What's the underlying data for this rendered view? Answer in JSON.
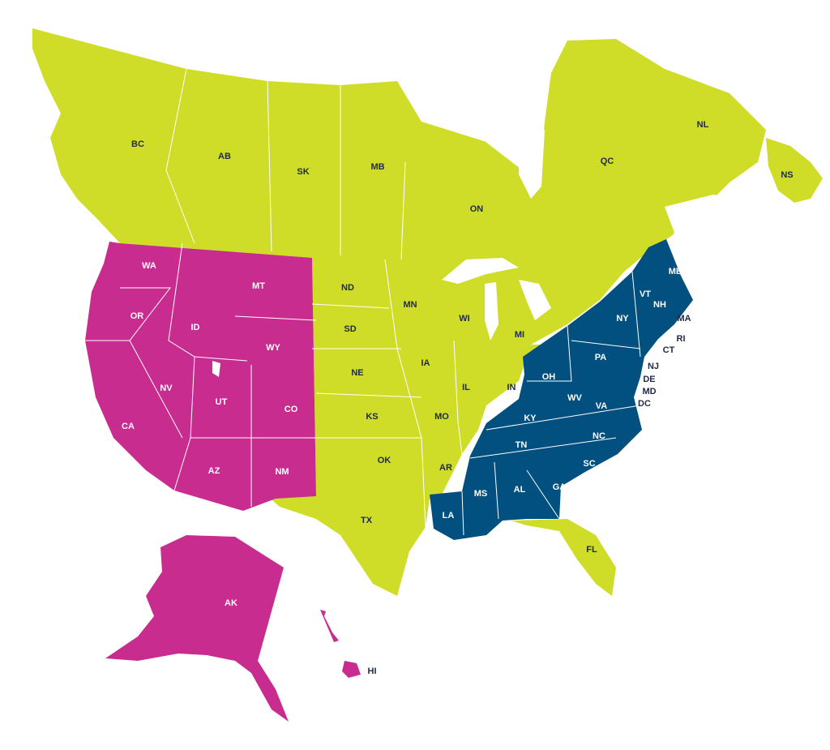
{
  "colors": {
    "group_lime": "#cfdd29",
    "group_magenta": "#c92c8f",
    "group_navy": "#01507f"
  },
  "canada": [
    "BC",
    "AB",
    "SK",
    "MB",
    "ON",
    "QC",
    "NL",
    "NS"
  ],
  "us_central": [
    "ND",
    "SD",
    "NE",
    "KS",
    "OK",
    "TX",
    "MN",
    "IA",
    "MO",
    "AR",
    "WI",
    "IL",
    "IN",
    "MI",
    "FL"
  ],
  "us_west": [
    "WA",
    "OR",
    "ID",
    "MT",
    "WY",
    "NV",
    "UT",
    "CO",
    "CA",
    "AZ",
    "NM",
    "AK",
    "HI"
  ],
  "us_east": [
    "ME",
    "VT",
    "NH",
    "MA",
    "RI",
    "CT",
    "NY",
    "PA",
    "NJ",
    "DE",
    "MD",
    "DC",
    "OH",
    "WV",
    "VA",
    "KY",
    "TN",
    "NC",
    "SC",
    "GA",
    "AL",
    "MS",
    "LA"
  ]
}
